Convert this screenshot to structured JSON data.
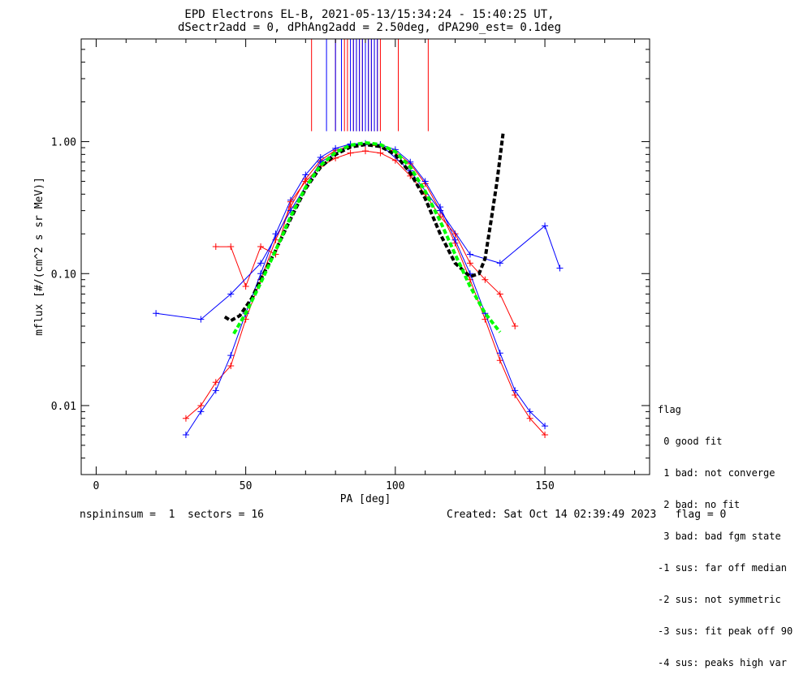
{
  "chart_data": {
    "type": "line",
    "title": "EPD Electrons EL-B, 2021-05-13/15:34:24 - 15:40:25 UT,",
    "subtitle": "dSectr2add = 0, dPhAng2add = 2.50deg, dPA290_est=   0.1deg",
    "xlabel": "PA [deg]",
    "ylabel": "mflux [#/(cm^2 s sr MeV)]",
    "xlim": [
      -5,
      185
    ],
    "ylim": [
      0.003,
      6.0
    ],
    "yscale": "log",
    "x_ticks": [
      0,
      50,
      100,
      150
    ],
    "x_tick_labels": [
      "0",
      "50",
      "100",
      "150"
    ],
    "y_ticks": [
      0.01,
      0.1,
      1.0
    ],
    "y_tick_labels": [
      "0.01",
      "0.10",
      "1.00"
    ],
    "grid": false,
    "colors": {
      "series_a": "#ff0000",
      "series_b": "#0000ff",
      "fit_green": "#00ff00",
      "fit_black": "#000000"
    },
    "fit_green": {
      "x": [
        46,
        50,
        55,
        60,
        65,
        70,
        75,
        80,
        85,
        90,
        95,
        100,
        105,
        110,
        115,
        120,
        125,
        130,
        135
      ],
      "y": [
        0.035,
        0.05,
        0.085,
        0.15,
        0.27,
        0.45,
        0.66,
        0.83,
        0.94,
        0.98,
        0.95,
        0.84,
        0.64,
        0.42,
        0.25,
        0.14,
        0.08,
        0.05,
        0.036
      ]
    },
    "fit_black": {
      "x": [
        43,
        45,
        48,
        52,
        56,
        60,
        65,
        70,
        75,
        80,
        85,
        90,
        95,
        100,
        105,
        110,
        115,
        120,
        125,
        128,
        130,
        132,
        134,
        136
      ],
      "y": [
        0.047,
        0.044,
        0.048,
        0.065,
        0.1,
        0.15,
        0.26,
        0.44,
        0.64,
        0.8,
        0.91,
        0.95,
        0.92,
        0.8,
        0.58,
        0.37,
        0.2,
        0.12,
        0.095,
        0.1,
        0.13,
        0.25,
        0.5,
        1.15
      ]
    },
    "vlines": {
      "y_range": [
        1.2,
        6.0
      ],
      "red_x": [
        72,
        80,
        83,
        84,
        86,
        87,
        88,
        89,
        90,
        91,
        92,
        93,
        94,
        95,
        101,
        111
      ],
      "blue_x": [
        77,
        80,
        82,
        85,
        86,
        87,
        88,
        89,
        90,
        91,
        92,
        93,
        94
      ]
    },
    "series": [
      {
        "name": "",
        "color": "red",
        "x": [
          30,
          35,
          40,
          45,
          50,
          55,
          60,
          65,
          70,
          75,
          80,
          85,
          90,
          95,
          100,
          105,
          110,
          115,
          120,
          125,
          130,
          135,
          140,
          145,
          150
        ],
        "y": [
          0.008,
          0.01,
          0.015,
          0.02,
          0.045,
          0.09,
          0.18,
          0.32,
          0.52,
          0.72,
          0.86,
          0.93,
          0.95,
          0.92,
          0.84,
          0.68,
          0.48,
          0.3,
          0.17,
          0.09,
          0.045,
          0.022,
          0.012,
          0.008,
          0.006
        ]
      },
      {
        "name": "",
        "color": "blue",
        "x": [
          30,
          35,
          40,
          45,
          50,
          55,
          60,
          65,
          70,
          75,
          80,
          85,
          90,
          95,
          100,
          105,
          110,
          115,
          120,
          125,
          130,
          135,
          140,
          145,
          150
        ],
        "y": [
          0.006,
          0.009,
          0.013,
          0.024,
          0.05,
          0.1,
          0.2,
          0.36,
          0.56,
          0.76,
          0.89,
          0.96,
          0.97,
          0.95,
          0.87,
          0.7,
          0.5,
          0.32,
          0.18,
          0.1,
          0.05,
          0.025,
          0.013,
          0.009,
          0.007
        ]
      },
      {
        "name": "",
        "color": "red",
        "x": [
          40,
          45,
          50,
          55,
          60,
          65,
          70,
          75,
          80,
          85,
          90,
          95,
          100,
          105,
          110,
          115,
          120,
          125,
          130,
          135,
          140
        ],
        "y": [
          0.16,
          0.16,
          0.08,
          0.16,
          0.14,
          0.35,
          0.5,
          0.65,
          0.75,
          0.82,
          0.85,
          0.82,
          0.72,
          0.55,
          0.4,
          0.27,
          0.2,
          0.12,
          0.09,
          0.07,
          0.04
        ]
      },
      {
        "name": "",
        "color": "blue",
        "x": [
          20,
          35,
          45,
          55,
          65,
          75,
          85,
          95,
          105,
          115,
          125,
          135,
          150,
          155
        ],
        "y": [
          0.05,
          0.045,
          0.07,
          0.12,
          0.3,
          0.7,
          0.95,
          0.95,
          0.6,
          0.3,
          0.14,
          0.12,
          0.23,
          0.11
        ]
      }
    ]
  },
  "legend": {
    "title": "flag",
    "items": [
      " 0 good fit",
      " 1 bad: not converge",
      " 2 bad: no fit",
      " 3 bad: bad fgm state",
      "-1 sus: far off median",
      "-2 sus: not symmetric",
      "-3 sus: fit peak off 90",
      "-4 sus: peaks high var"
    ]
  },
  "footer": {
    "left": "nspininsum =  1  sectors = 16",
    "right": "Created: Sat Oct 14 02:39:49 2023   flag = 0"
  }
}
